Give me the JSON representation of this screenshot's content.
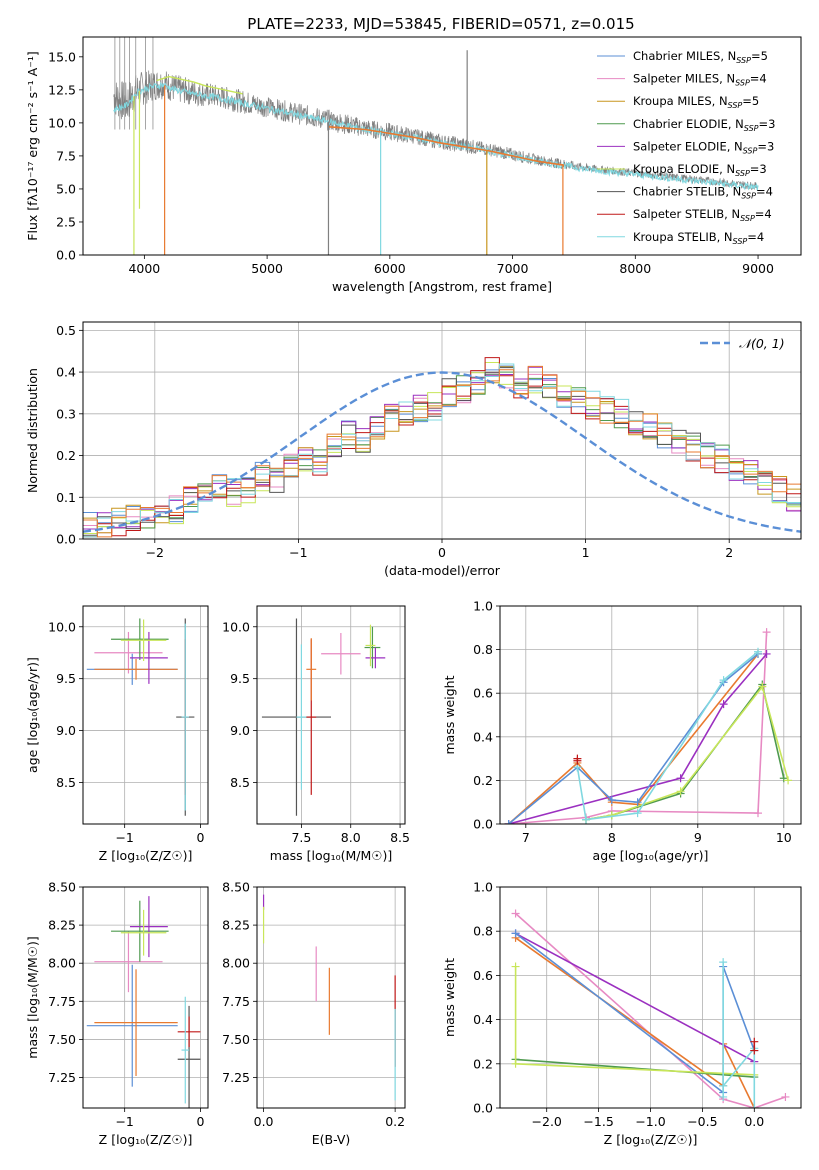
{
  "figure": {
    "title": "PLATE=2233, MJD=53845, FIBERID=0571, z=0.015",
    "colors": {
      "Chabrier MILES": "#5b8fd6",
      "Salpeter MILES": "#e78ac3",
      "Kroupa MILES": "#c8961e",
      "Chabrier ELODIE": "#4f9a4f",
      "Salpeter ELODIE": "#9b30c0",
      "Kroupa ELODIE": "#c8e65a",
      "Chabrier STELIB": "#555555",
      "Salpeter STELIB": "#c01818",
      "Kroupa STELIB": "#80d8e0",
      "data": "#808080",
      "model_orange": "#e87a30",
      "normal": "#5b8fd6"
    }
  },
  "chart_data": [
    {
      "id": "spectrum",
      "type": "line",
      "xlabel": "wavelength [Angstrom, rest frame]",
      "ylabel": "Flux [fλ10⁻¹⁷ erg cm⁻² s⁻¹ A⁻¹]",
      "xlim": [
        3500,
        9350
      ],
      "ylim": [
        0,
        16.5
      ],
      "xticks": [
        4000,
        5000,
        6000,
        7000,
        8000,
        9000
      ],
      "yticks": [
        0.0,
        2.5,
        5.0,
        7.5,
        10.0,
        12.5,
        15.0
      ],
      "grid": false,
      "legend_position": "top-right",
      "legend": [
        {
          "label": "Chabrier MILES, N",
          "sub": "SSP",
          "suffix": "=5",
          "color": "#5b8fd6"
        },
        {
          "label": "Salpeter MILES, N",
          "sub": "SSP",
          "suffix": "=4",
          "color": "#e78ac3"
        },
        {
          "label": "Kroupa MILES, N",
          "sub": "SSP",
          "suffix": "=5",
          "color": "#c8961e"
        },
        {
          "label": "Chabrier ELODIE, N",
          "sub": "SSP",
          "suffix": "=3",
          "color": "#4f9a4f"
        },
        {
          "label": "Salpeter ELODIE, N",
          "sub": "SSP",
          "suffix": "=3",
          "color": "#9b30c0"
        },
        {
          "label": "Kroupa ELODIE, N",
          "sub": "SSP",
          "suffix": "=3",
          "color": "#c8e65a"
        },
        {
          "label": "Chabrier STELIB, N",
          "sub": "SSP",
          "suffix": "=4",
          "color": "#555555"
        },
        {
          "label": "Salpeter STELIB, N",
          "sub": "SSP",
          "suffix": "=4",
          "color": "#c01818"
        },
        {
          "label": "Kroupa STELIB, N",
          "sub": "SSP",
          "suffix": "=4",
          "color": "#80d8e0"
        }
      ],
      "data_envelope": {
        "x": [
          3750,
          3850,
          3950,
          4050,
          4150,
          4250,
          4400,
          4600,
          4800,
          5000,
          5200,
          5400,
          5600,
          5800,
          6000,
          6200,
          6400,
          6600,
          6800,
          7000,
          7200,
          7400,
          7600,
          7800,
          8000,
          8200,
          8400,
          8600,
          8800,
          9000
        ],
        "y": [
          12.0,
          11.5,
          12.5,
          12.8,
          13.0,
          12.6,
          12.3,
          12.0,
          11.6,
          11.2,
          10.8,
          10.4,
          10.0,
          9.6,
          9.3,
          9.0,
          8.6,
          8.3,
          8.0,
          7.6,
          7.2,
          6.9,
          6.6,
          6.4,
          6.2,
          6.0,
          5.8,
          5.6,
          5.4,
          5.2
        ],
        "noise": [
          1.5,
          1.6,
          1.4,
          1.2,
          1.2,
          1.1,
          1.0,
          0.9,
          0.9,
          0.8,
          0.8,
          0.8,
          0.8,
          0.7,
          0.7,
          0.6,
          0.6,
          0.6,
          0.5,
          0.5,
          0.4,
          0.4,
          0.3,
          0.3,
          0.3,
          0.3,
          0.3,
          0.3,
          0.3,
          0.3
        ]
      },
      "model": {
        "x": [
          3750,
          3850,
          3950,
          4050,
          4150,
          4250,
          4400,
          4600,
          4800,
          5000,
          5200,
          5400,
          5600,
          5800,
          6000,
          6200,
          6400,
          6600,
          6800,
          7000,
          7200,
          7400,
          7600,
          7800,
          8000,
          8200,
          8400,
          8600,
          8800,
          9000
        ],
        "y": [
          11.0,
          11.3,
          12.4,
          12.7,
          12.9,
          12.5,
          12.2,
          11.9,
          11.5,
          11.1,
          10.7,
          10.3,
          9.9,
          9.5,
          9.2,
          8.9,
          8.5,
          8.2,
          7.9,
          7.5,
          7.1,
          6.8,
          6.5,
          6.3,
          6.1,
          5.9,
          5.7,
          5.5,
          5.3,
          5.1
        ]
      },
      "orange_model": {
        "x": [
          5500,
          5800,
          6000,
          6200,
          6400,
          6600,
          6800,
          7000,
          7200,
          7420
        ],
        "y": [
          9.7,
          9.5,
          9.2,
          8.9,
          8.5,
          8.2,
          7.9,
          7.5,
          7.1,
          6.8
        ]
      },
      "yellow_model": {
        "x": [
          4100,
          4200,
          4300,
          4400,
          4500,
          4600,
          4700,
          4800
        ],
        "y": [
          13.2,
          13.5,
          13.3,
          13.1,
          12.8,
          12.6,
          12.4,
          12.2
        ]
      },
      "spikes": [
        {
          "x": 3915,
          "y": 0,
          "color": "#c8e65a"
        },
        {
          "x": 3960,
          "y": 3.5,
          "color": "#c8e65a"
        },
        {
          "x": 4165,
          "y": 0,
          "color": "#e87a30"
        },
        {
          "x": 5500,
          "y": 0,
          "color": "#808080"
        },
        {
          "x": 5925,
          "y": 0,
          "color": "#80d8e0"
        },
        {
          "x": 6790,
          "y": 0,
          "color": "#c8961e"
        },
        {
          "x": 7410,
          "y": 0,
          "color": "#e87a30"
        },
        {
          "x": 6630,
          "y": 15.5,
          "color": "#808080"
        }
      ]
    },
    {
      "id": "residuals",
      "type": "area",
      "xlabel": "(data-model)/error",
      "ylabel": "Normed distribution",
      "xlim": [
        -2.5,
        2.5
      ],
      "ylim": [
        0,
        0.52
      ],
      "xticks": [
        -2,
        -1,
        0,
        1,
        2
      ],
      "yticks": [
        0.0,
        0.1,
        0.2,
        0.3,
        0.4,
        0.5
      ],
      "grid": true,
      "legend_position": "top-right",
      "normal_label": "𝒩(0, 1)",
      "bin_width": 0.1,
      "bin_start": -2.5,
      "histogram_base": [
        0.03,
        0.03,
        0.04,
        0.05,
        0.05,
        0.06,
        0.07,
        0.09,
        0.11,
        0.12,
        0.11,
        0.12,
        0.15,
        0.14,
        0.17,
        0.19,
        0.18,
        0.22,
        0.25,
        0.24,
        0.27,
        0.29,
        0.3,
        0.31,
        0.32,
        0.35,
        0.36,
        0.38,
        0.4,
        0.39,
        0.37,
        0.38,
        0.36,
        0.35,
        0.33,
        0.32,
        0.31,
        0.3,
        0.28,
        0.27,
        0.25,
        0.23,
        0.22,
        0.2,
        0.19,
        0.17,
        0.16,
        0.14,
        0.12,
        0.1,
        0.08,
        0.07,
        0.06,
        0.05,
        0.05,
        0.05,
        0.04,
        0.04,
        0.03,
        0.03,
        0.02
      ],
      "series_colors": [
        "#5b8fd6",
        "#e78ac3",
        "#c8961e",
        "#4f9a4f",
        "#9b30c0",
        "#c8e65a",
        "#555555",
        "#c01818",
        "#80d8e0",
        "#e87a30"
      ]
    },
    {
      "id": "z-age",
      "type": "scatter",
      "xlabel": "Z [log₁₀(Z/Z☉)]",
      "ylabel": "age  [log₁₀(age/yr)]",
      "xlim": [
        -1.55,
        0.1
      ],
      "ylim": [
        8.1,
        10.2
      ],
      "xticks": [
        -1,
        0
      ],
      "yticks": [
        8.5,
        9.0,
        9.5,
        10.0
      ],
      "grid": true,
      "points": [
        {
          "x": -0.9,
          "y": 9.59,
          "xerr": 0.6,
          "yerr": 0.15,
          "color": "#5b8fd6"
        },
        {
          "x": -0.95,
          "y": 9.75,
          "xerr": 0.45,
          "yerr": 0.2,
          "color": "#e78ac3"
        },
        {
          "x": -0.85,
          "y": 9.59,
          "xerr": 0.55,
          "yerr": 0.1,
          "color": "#e87a30"
        },
        {
          "x": -0.8,
          "y": 9.88,
          "xerr": 0.38,
          "yerr": 0.2,
          "color": "#4f9a4f"
        },
        {
          "x": -0.68,
          "y": 9.7,
          "xerr": 0.25,
          "yerr": 0.25,
          "color": "#9b30c0"
        },
        {
          "x": -0.75,
          "y": 9.87,
          "xerr": 0.3,
          "yerr": 0.2,
          "color": "#c8e65a"
        },
        {
          "x": -0.2,
          "y": 9.13,
          "xerr": 0.12,
          "yerr": 0.95,
          "color": "#555555"
        },
        {
          "x": -0.2,
          "y": 9.13,
          "xerr": 0.05,
          "yerr": 0.75,
          "color": "#c01818"
        },
        {
          "x": -0.2,
          "y": 9.13,
          "xerr": 0.05,
          "yerr": 0.9,
          "color": "#80d8e0"
        }
      ]
    },
    {
      "id": "mass-age",
      "type": "scatter",
      "xlabel": "mass [log₁₀(M/M☉)]",
      "ylabel": "",
      "xlim": [
        7.05,
        8.55
      ],
      "ylim": [
        8.1,
        10.2
      ],
      "xticks": [
        7.5,
        8.0,
        8.5
      ],
      "yticks": [
        8.5,
        9.0,
        9.5,
        10.0
      ],
      "grid": true,
      "points": [
        {
          "x": 7.45,
          "y": 9.13,
          "xerr": 0.35,
          "yerr": 0.95,
          "color": "#555555"
        },
        {
          "x": 7.6,
          "y": 9.13,
          "xerr": 0.05,
          "yerr": 0.75,
          "color": "#c01818"
        },
        {
          "x": 7.5,
          "y": 9.13,
          "xerr": 0.05,
          "yerr": 0.7,
          "color": "#80d8e0"
        },
        {
          "x": 7.6,
          "y": 9.59,
          "xerr": 0.05,
          "yerr": 0.3,
          "color": "#e87a30"
        },
        {
          "x": 7.9,
          "y": 9.74,
          "xerr": 0.2,
          "yerr": 0.2,
          "color": "#e78ac3"
        },
        {
          "x": 8.22,
          "y": 9.8,
          "xerr": 0.08,
          "yerr": 0.2,
          "color": "#4f9a4f"
        },
        {
          "x": 8.25,
          "y": 9.7,
          "xerr": 0.1,
          "yerr": 0.1,
          "color": "#9b30c0"
        },
        {
          "x": 8.2,
          "y": 9.82,
          "xerr": 0.05,
          "yerr": 0.2,
          "color": "#c8e65a"
        }
      ]
    },
    {
      "id": "age-weight",
      "type": "line",
      "xlabel": "age  [log₁₀(age/yr)]",
      "ylabel": "mass weight",
      "xlim": [
        6.7,
        10.2
      ],
      "ylim": [
        0,
        1.0
      ],
      "xticks": [
        7,
        8,
        9,
        10
      ],
      "yticks": [
        0.0,
        0.2,
        0.4,
        0.6,
        0.8,
        1.0
      ],
      "grid": true,
      "series": [
        {
          "color": "#e78ac3",
          "x": [
            6.8,
            7.7,
            8.0,
            9.7,
            9.8
          ],
          "y": [
            0.0,
            0.03,
            0.06,
            0.05,
            0.88
          ]
        },
        {
          "color": "#e87a30",
          "x": [
            6.8,
            7.6,
            8.0,
            8.3,
            9.7
          ],
          "y": [
            0.0,
            0.28,
            0.1,
            0.09,
            0.78
          ]
        },
        {
          "color": "#4f9a4f",
          "x": [
            7.7,
            8.0,
            8.8,
            9.75,
            10.0
          ],
          "y": [
            0.02,
            0.04,
            0.14,
            0.64,
            0.21
          ]
        },
        {
          "color": "#c8e65a",
          "x": [
            7.7,
            8.0,
            8.8,
            9.75,
            10.05
          ],
          "y": [
            0.02,
            0.04,
            0.15,
            0.63,
            0.2
          ]
        },
        {
          "color": "#9b30c0",
          "x": [
            6.8,
            8.8,
            9.3,
            9.8
          ],
          "y": [
            0.0,
            0.21,
            0.55,
            0.78
          ]
        },
        {
          "color": "#5b8fd6",
          "x": [
            6.8,
            7.6,
            8.0,
            8.3,
            9.3,
            9.7
          ],
          "y": [
            0.0,
            0.26,
            0.11,
            0.1,
            0.65,
            0.78
          ]
        },
        {
          "color": "#80d8e0",
          "x": [
            7.6,
            7.7,
            8.3,
            9.3,
            9.7
          ],
          "y": [
            0.26,
            0.02,
            0.05,
            0.66,
            0.79
          ]
        },
        {
          "color": "#c01818",
          "x": [
            7.6,
            7.6
          ],
          "y": [
            0.3,
            0.29
          ]
        }
      ]
    },
    {
      "id": "z-mass",
      "type": "scatter",
      "xlabel": "Z [log₁₀(Z/Z☉)]",
      "ylabel": "mass [log₁₀(M/M☉)]",
      "xlim": [
        -1.55,
        0.1
      ],
      "ylim": [
        7.05,
        8.5
      ],
      "xticks": [
        -1,
        0
      ],
      "yticks": [
        7.25,
        7.5,
        7.75,
        8.0,
        8.25,
        8.5
      ],
      "grid": true,
      "points": [
        {
          "x": -0.9,
          "y": 7.59,
          "xerr": 0.6,
          "yerr": 0.4,
          "color": "#5b8fd6"
        },
        {
          "x": -0.95,
          "y": 8.01,
          "xerr": 0.45,
          "yerr": 0.2,
          "color": "#e78ac3"
        },
        {
          "x": -0.85,
          "y": 7.61,
          "xerr": 0.55,
          "yerr": 0.35,
          "color": "#e87a30"
        },
        {
          "x": -0.8,
          "y": 8.21,
          "xerr": 0.38,
          "yerr": 0.2,
          "color": "#4f9a4f"
        },
        {
          "x": -0.68,
          "y": 8.24,
          "xerr": 0.25,
          "yerr": 0.2,
          "color": "#9b30c0"
        },
        {
          "x": -0.75,
          "y": 8.2,
          "xerr": 0.3,
          "yerr": 0.15,
          "color": "#c8e65a"
        },
        {
          "x": -0.15,
          "y": 7.37,
          "xerr": 0.15,
          "yerr": 0.35,
          "color": "#555555"
        },
        {
          "x": -0.15,
          "y": 7.55,
          "xerr": 0.15,
          "yerr": 0.1,
          "color": "#c01818"
        },
        {
          "x": -0.2,
          "y": 7.43,
          "xerr": 0.05,
          "yerr": 0.35,
          "color": "#80d8e0"
        }
      ]
    },
    {
      "id": "ebv-mass",
      "type": "scatter",
      "xlabel": "E(B-V)",
      "ylabel": "",
      "xlim": [
        -0.01,
        0.215
      ],
      "ylim": [
        7.05,
        8.5
      ],
      "xticks": [
        0.0,
        0.2
      ],
      "yticks": [
        7.25,
        7.5,
        7.75,
        8.0,
        8.25,
        8.5
      ],
      "grid": true,
      "points": [
        {
          "x": 0.0,
          "y": 8.4,
          "xerr": 0,
          "yerr": 0.05,
          "color": "#9b30c0"
        },
        {
          "x": 0.0,
          "y": 8.25,
          "xerr": 0,
          "yerr": 0.12,
          "color": "#c8e65a"
        },
        {
          "x": 0.08,
          "y": 7.93,
          "xerr": 0,
          "yerr": 0.18,
          "color": "#e78ac3"
        },
        {
          "x": 0.1,
          "y": 7.75,
          "xerr": 0,
          "yerr": 0.22,
          "color": "#e87a30"
        },
        {
          "x": 0.2,
          "y": 7.62,
          "xerr": 0,
          "yerr": 0.3,
          "color": "#c01818"
        },
        {
          "x": 0.2,
          "y": 7.4,
          "xerr": 0,
          "yerr": 0.3,
          "color": "#80d8e0"
        }
      ]
    },
    {
      "id": "z-weight",
      "type": "line",
      "xlabel": "Z [log₁₀(Z/Z☉)]",
      "ylabel": "mass weight",
      "xlim": [
        -2.45,
        0.45
      ],
      "ylim": [
        0,
        1.0
      ],
      "xticks": [
        -2.0,
        -1.5,
        -1.0,
        -0.5,
        0.0
      ],
      "yticks": [
        0.0,
        0.2,
        0.4,
        0.6,
        0.8,
        1.0
      ],
      "grid": true,
      "series": [
        {
          "color": "#e78ac3",
          "x": [
            -2.3,
            -0.3,
            0.0,
            0.3
          ],
          "y": [
            0.88,
            0.04,
            0.0,
            0.05
          ]
        },
        {
          "color": "#e87a30",
          "x": [
            -2.3,
            -0.3,
            -0.3,
            0.0
          ],
          "y": [
            0.77,
            0.1,
            0.29,
            0.0
          ]
        },
        {
          "color": "#9b30c0",
          "x": [
            -2.3,
            0.0
          ],
          "y": [
            0.79,
            0.21
          ]
        },
        {
          "color": "#5b8fd6",
          "x": [
            -2.3,
            -0.3,
            -0.3,
            0.0
          ],
          "y": [
            0.79,
            0.07,
            0.64,
            0.26
          ]
        },
        {
          "color": "#4f9a4f",
          "x": [
            -2.3,
            0.0
          ],
          "y": [
            0.22,
            0.14
          ]
        },
        {
          "color": "#c8e65a",
          "x": [
            -2.3,
            -2.3,
            0.0
          ],
          "y": [
            0.64,
            0.2,
            0.15
          ]
        },
        {
          "color": "#80d8e0",
          "x": [
            -0.3,
            -0.3,
            -0.3,
            0.0,
            0.0
          ],
          "y": [
            0.05,
            0.66,
            0.1,
            0.27,
            0.0
          ]
        },
        {
          "color": "#c01818",
          "x": [
            0.0,
            0.0
          ],
          "y": [
            0.3,
            0.26
          ]
        }
      ]
    }
  ]
}
